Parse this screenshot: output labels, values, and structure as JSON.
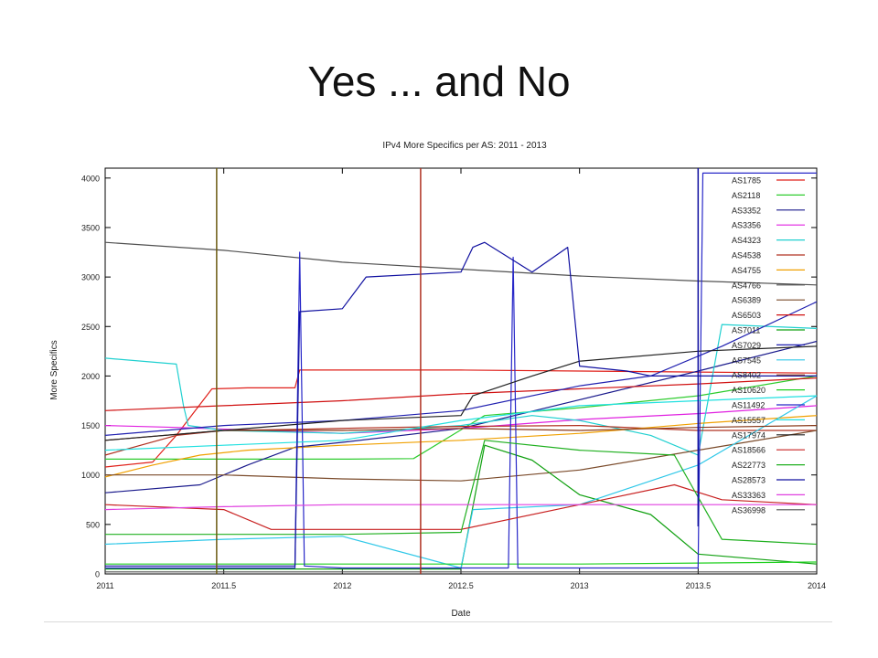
{
  "slide": {
    "title": "Yes ... and No"
  },
  "chart_data": {
    "type": "line",
    "title": "IPv4 More Specifics per AS: 2011 - 2013",
    "xlabel": "Date",
    "ylabel": "More Specifics",
    "xlim": [
      2011,
      2014
    ],
    "ylim": [
      0,
      4100
    ],
    "xticks": [
      "2011",
      "2011.5",
      "2012",
      "2012.5",
      "2013",
      "2013.5",
      "2014"
    ],
    "yticks": [
      "0",
      "500",
      "1000",
      "1500",
      "2000",
      "2500",
      "3000",
      "3500",
      "4000"
    ],
    "grid": false,
    "legend_position": "top-right",
    "series": [
      {
        "name": "AS1785",
        "color": "#e0201a",
        "points": [
          [
            2011,
            1080
          ],
          [
            2011.2,
            1130
          ],
          [
            2011.3,
            1400
          ],
          [
            2011.45,
            1870
          ],
          [
            2011.6,
            1880
          ],
          [
            2011.8,
            1880
          ],
          [
            2011.82,
            2060
          ],
          [
            2012.5,
            2060
          ],
          [
            2013,
            2050
          ],
          [
            2014,
            2030
          ]
        ]
      },
      {
        "name": "AS2118",
        "color": "#2ecc2e",
        "points": [
          [
            2011,
            1160
          ],
          [
            2012,
            1160
          ],
          [
            2012.3,
            1165
          ],
          [
            2012.6,
            1600
          ],
          [
            2013,
            1680
          ],
          [
            2013.5,
            1800
          ],
          [
            2014,
            2000
          ]
        ]
      },
      {
        "name": "AS3352",
        "color": "#1a1a8c",
        "points": [
          [
            2011,
            820
          ],
          [
            2011.4,
            900
          ],
          [
            2011.6,
            1100
          ],
          [
            2011.8,
            1280
          ],
          [
            2012,
            1330
          ],
          [
            2012.5,
            1470
          ],
          [
            2013,
            1760
          ],
          [
            2013.5,
            2050
          ],
          [
            2014,
            2350
          ]
        ]
      },
      {
        "name": "AS3356",
        "color": "#e020e0",
        "points": [
          [
            2011,
            1500
          ],
          [
            2011.3,
            1480
          ],
          [
            2012,
            1420
          ],
          [
            2012.5,
            1470
          ],
          [
            2013,
            1560
          ],
          [
            2013.5,
            1620
          ],
          [
            2014,
            1700
          ]
        ]
      },
      {
        "name": "AS4323",
        "color": "#20d0d0",
        "points": [
          [
            2011,
            2180
          ],
          [
            2011.3,
            2120
          ],
          [
            2011.33,
            1700
          ],
          [
            2011.35,
            1500
          ],
          [
            2011.5,
            1450
          ],
          [
            2012,
            1420
          ],
          [
            2012.5,
            1500
          ],
          [
            2012.8,
            1600
          ],
          [
            2013,
            1550
          ],
          [
            2013.3,
            1400
          ],
          [
            2013.5,
            1200
          ],
          [
            2013.6,
            2520
          ],
          [
            2014,
            2480
          ]
        ]
      },
      {
        "name": "AS4538",
        "color": "#b03020",
        "points": [
          [
            2011,
            1200
          ],
          [
            2011.3,
            1400
          ],
          [
            2011.5,
            1450
          ],
          [
            2011.8,
            1460
          ],
          [
            2012.2,
            1480
          ],
          [
            2012.5,
            1490
          ],
          [
            2013,
            1500
          ],
          [
            2013.5,
            1450
          ],
          [
            2014,
            1450
          ]
        ]
      },
      {
        "name": "AS4755",
        "color": "#f0a000",
        "points": [
          [
            2011,
            980
          ],
          [
            2011.2,
            1100
          ],
          [
            2011.4,
            1200
          ],
          [
            2011.6,
            1250
          ],
          [
            2012,
            1300
          ],
          [
            2012.5,
            1350
          ],
          [
            2013,
            1420
          ],
          [
            2013.5,
            1520
          ],
          [
            2014,
            1600
          ]
        ]
      },
      {
        "name": "AS4766",
        "color": "#505050",
        "points": [
          [
            2011,
            3350
          ],
          [
            2011.5,
            3270
          ],
          [
            2012,
            3150
          ],
          [
            2012.5,
            3080
          ],
          [
            2013,
            3010
          ],
          [
            2013.5,
            2960
          ],
          [
            2014,
            2920
          ]
        ]
      },
      {
        "name": "AS6389",
        "color": "#7a4a2a",
        "points": [
          [
            2011,
            1000
          ],
          [
            2011.5,
            1000
          ],
          [
            2012,
            960
          ],
          [
            2012.5,
            940
          ],
          [
            2013,
            1050
          ],
          [
            2013.5,
            1250
          ],
          [
            2014,
            1450
          ]
        ]
      },
      {
        "name": "AS6503",
        "color": "#d01010",
        "points": [
          [
            2011,
            1650
          ],
          [
            2011.5,
            1700
          ],
          [
            2012,
            1750
          ],
          [
            2012.5,
            1820
          ],
          [
            2013,
            1870
          ],
          [
            2013.5,
            1920
          ],
          [
            2014,
            1980
          ]
        ]
      },
      {
        "name": "AS7011",
        "color": "#10a010",
        "points": [
          [
            2011,
            50
          ],
          [
            2012,
            50
          ],
          [
            2012.5,
            50
          ],
          [
            2012.6,
            1300
          ],
          [
            2012.8,
            1150
          ],
          [
            2013,
            800
          ],
          [
            2013.3,
            600
          ],
          [
            2013.5,
            200
          ],
          [
            2014,
            100
          ]
        ]
      },
      {
        "name": "AS7029",
        "color": "#2020b0",
        "points": [
          [
            2011,
            1400
          ],
          [
            2011.5,
            1500
          ],
          [
            2012,
            1550
          ],
          [
            2012.5,
            1650
          ],
          [
            2013,
            1900
          ],
          [
            2013.3,
            2000
          ],
          [
            2013.6,
            2300
          ],
          [
            2014,
            2750
          ]
        ]
      },
      {
        "name": "AS7545",
        "color": "#30c8e8",
        "points": [
          [
            2011,
            300
          ],
          [
            2011.5,
            350
          ],
          [
            2012,
            380
          ],
          [
            2012.5,
            60
          ],
          [
            2012.55,
            650
          ],
          [
            2013,
            700
          ],
          [
            2013.5,
            1100
          ],
          [
            2014,
            1800
          ]
        ]
      },
      {
        "name": "AS8402",
        "color": "#8a3a1a",
        "points": [
          [
            2011,
            1350
          ],
          [
            2011.5,
            1450
          ],
          [
            2012,
            1450
          ],
          [
            2012.5,
            1470
          ],
          [
            2013,
            1450
          ],
          [
            2013.5,
            1480
          ],
          [
            2014,
            1500
          ]
        ]
      },
      {
        "name": "AS10620",
        "color": "#20d020",
        "points": [
          [
            2011,
            100
          ],
          [
            2012,
            100
          ],
          [
            2013,
            100
          ],
          [
            2013.5,
            110
          ],
          [
            2014,
            120
          ]
        ]
      },
      {
        "name": "AS11492",
        "color": "#2828c8",
        "points": [
          [
            2011,
            60
          ],
          [
            2011.8,
            60
          ],
          [
            2011.82,
            3250
          ],
          [
            2011.84,
            80
          ],
          [
            2012,
            60
          ],
          [
            2012.7,
            60
          ],
          [
            2012.72,
            3200
          ],
          [
            2012.74,
            60
          ],
          [
            2013.5,
            60
          ],
          [
            2013.52,
            4050
          ],
          [
            2014,
            4050
          ]
        ]
      },
      {
        "name": "AS15557",
        "color": "#20e0e0",
        "points": [
          [
            2011,
            1250
          ],
          [
            2011.5,
            1300
          ],
          [
            2012,
            1350
          ],
          [
            2012.5,
            1550
          ],
          [
            2013,
            1700
          ],
          [
            2013.5,
            1750
          ],
          [
            2014,
            1800
          ]
        ]
      },
      {
        "name": "AS17974",
        "color": "#202020",
        "points": [
          [
            2011,
            1350
          ],
          [
            2011.5,
            1450
          ],
          [
            2012,
            1550
          ],
          [
            2012.5,
            1600
          ],
          [
            2012.55,
            1800
          ],
          [
            2012.8,
            2000
          ],
          [
            2013,
            2150
          ],
          [
            2013.5,
            2250
          ],
          [
            2014,
            2300
          ]
        ]
      },
      {
        "name": "AS18566",
        "color": "#c82020",
        "points": [
          [
            2011,
            700
          ],
          [
            2011.5,
            650
          ],
          [
            2011.7,
            450
          ],
          [
            2012,
            450
          ],
          [
            2012.5,
            450
          ],
          [
            2013,
            700
          ],
          [
            2013.4,
            900
          ],
          [
            2013.6,
            750
          ],
          [
            2014,
            700
          ]
        ]
      },
      {
        "name": "AS22773",
        "color": "#20b020",
        "points": [
          [
            2011,
            400
          ],
          [
            2012,
            400
          ],
          [
            2012.5,
            420
          ],
          [
            2012.6,
            1350
          ],
          [
            2013,
            1250
          ],
          [
            2013.4,
            1200
          ],
          [
            2013.6,
            350
          ],
          [
            2014,
            300
          ]
        ]
      },
      {
        "name": "AS28573",
        "color": "#1010a0",
        "points": [
          [
            2011,
            80
          ],
          [
            2011.5,
            80
          ],
          [
            2011.8,
            80
          ],
          [
            2011.82,
            2650
          ],
          [
            2012,
            2680
          ],
          [
            2012.1,
            3000
          ],
          [
            2012.5,
            3050
          ],
          [
            2012.55,
            3300
          ],
          [
            2012.6,
            3350
          ],
          [
            2012.8,
            3050
          ],
          [
            2012.95,
            3300
          ],
          [
            2013,
            2100
          ],
          [
            2013.2,
            2050
          ],
          [
            2013.3,
            2000
          ],
          [
            2014,
            2000
          ]
        ]
      },
      {
        "name": "AS33363",
        "color": "#e040e0",
        "points": [
          [
            2011,
            650
          ],
          [
            2011.5,
            680
          ],
          [
            2012,
            700
          ],
          [
            2012.5,
            700
          ],
          [
            2013,
            700
          ],
          [
            2013.5,
            700
          ],
          [
            2014,
            700
          ]
        ]
      },
      {
        "name": "AS36998",
        "color": "#505050",
        "points": [
          [
            2011,
            20
          ],
          [
            2012,
            20
          ],
          [
            2013,
            20
          ],
          [
            2014,
            20
          ]
        ]
      }
    ],
    "vertical_lines": [
      {
        "x": 2011.47,
        "y": [
          0,
          4100
        ],
        "color": "#6b5a10"
      },
      {
        "x": 2012.33,
        "y": [
          0,
          4100
        ],
        "color": "#b03020"
      },
      {
        "x": 2013.5,
        "y": [
          480,
          4100
        ],
        "color": "#1010a0"
      }
    ]
  }
}
